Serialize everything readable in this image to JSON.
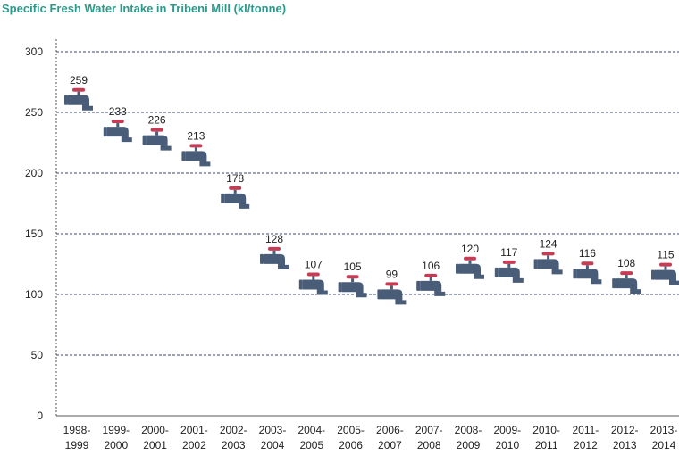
{
  "chart_data": {
    "type": "scatter",
    "title": "Specific Fresh Water Intake in Tribeni Mill (kl/tonne)",
    "categories": [
      "1998-1999",
      "1999-2000",
      "2000-2001",
      "2001-2002",
      "2002-2003",
      "2003-2004",
      "2004-2005",
      "2005-2006",
      "2006-2007",
      "2007-2008",
      "2008-2009",
      "2009-2010",
      "2010-2011",
      "2011-2012",
      "2012-2013",
      "2013-2014"
    ],
    "values": [
      259,
      233,
      226,
      213,
      178,
      128,
      107,
      105,
      99,
      106,
      120,
      117,
      124,
      116,
      108,
      115
    ],
    "ylim": [
      0,
      300
    ],
    "yticks": [
      0,
      50,
      100,
      150,
      200,
      250,
      300
    ],
    "xlabel": "",
    "ylabel": "",
    "grid": "horizontal dashed",
    "marker": "water-tap-icon",
    "colors": {
      "title": "#2b9a8a",
      "tap": "#4a5d78",
      "handle": "#c73c55",
      "grid": "#33477a",
      "axis": "#555555"
    }
  }
}
